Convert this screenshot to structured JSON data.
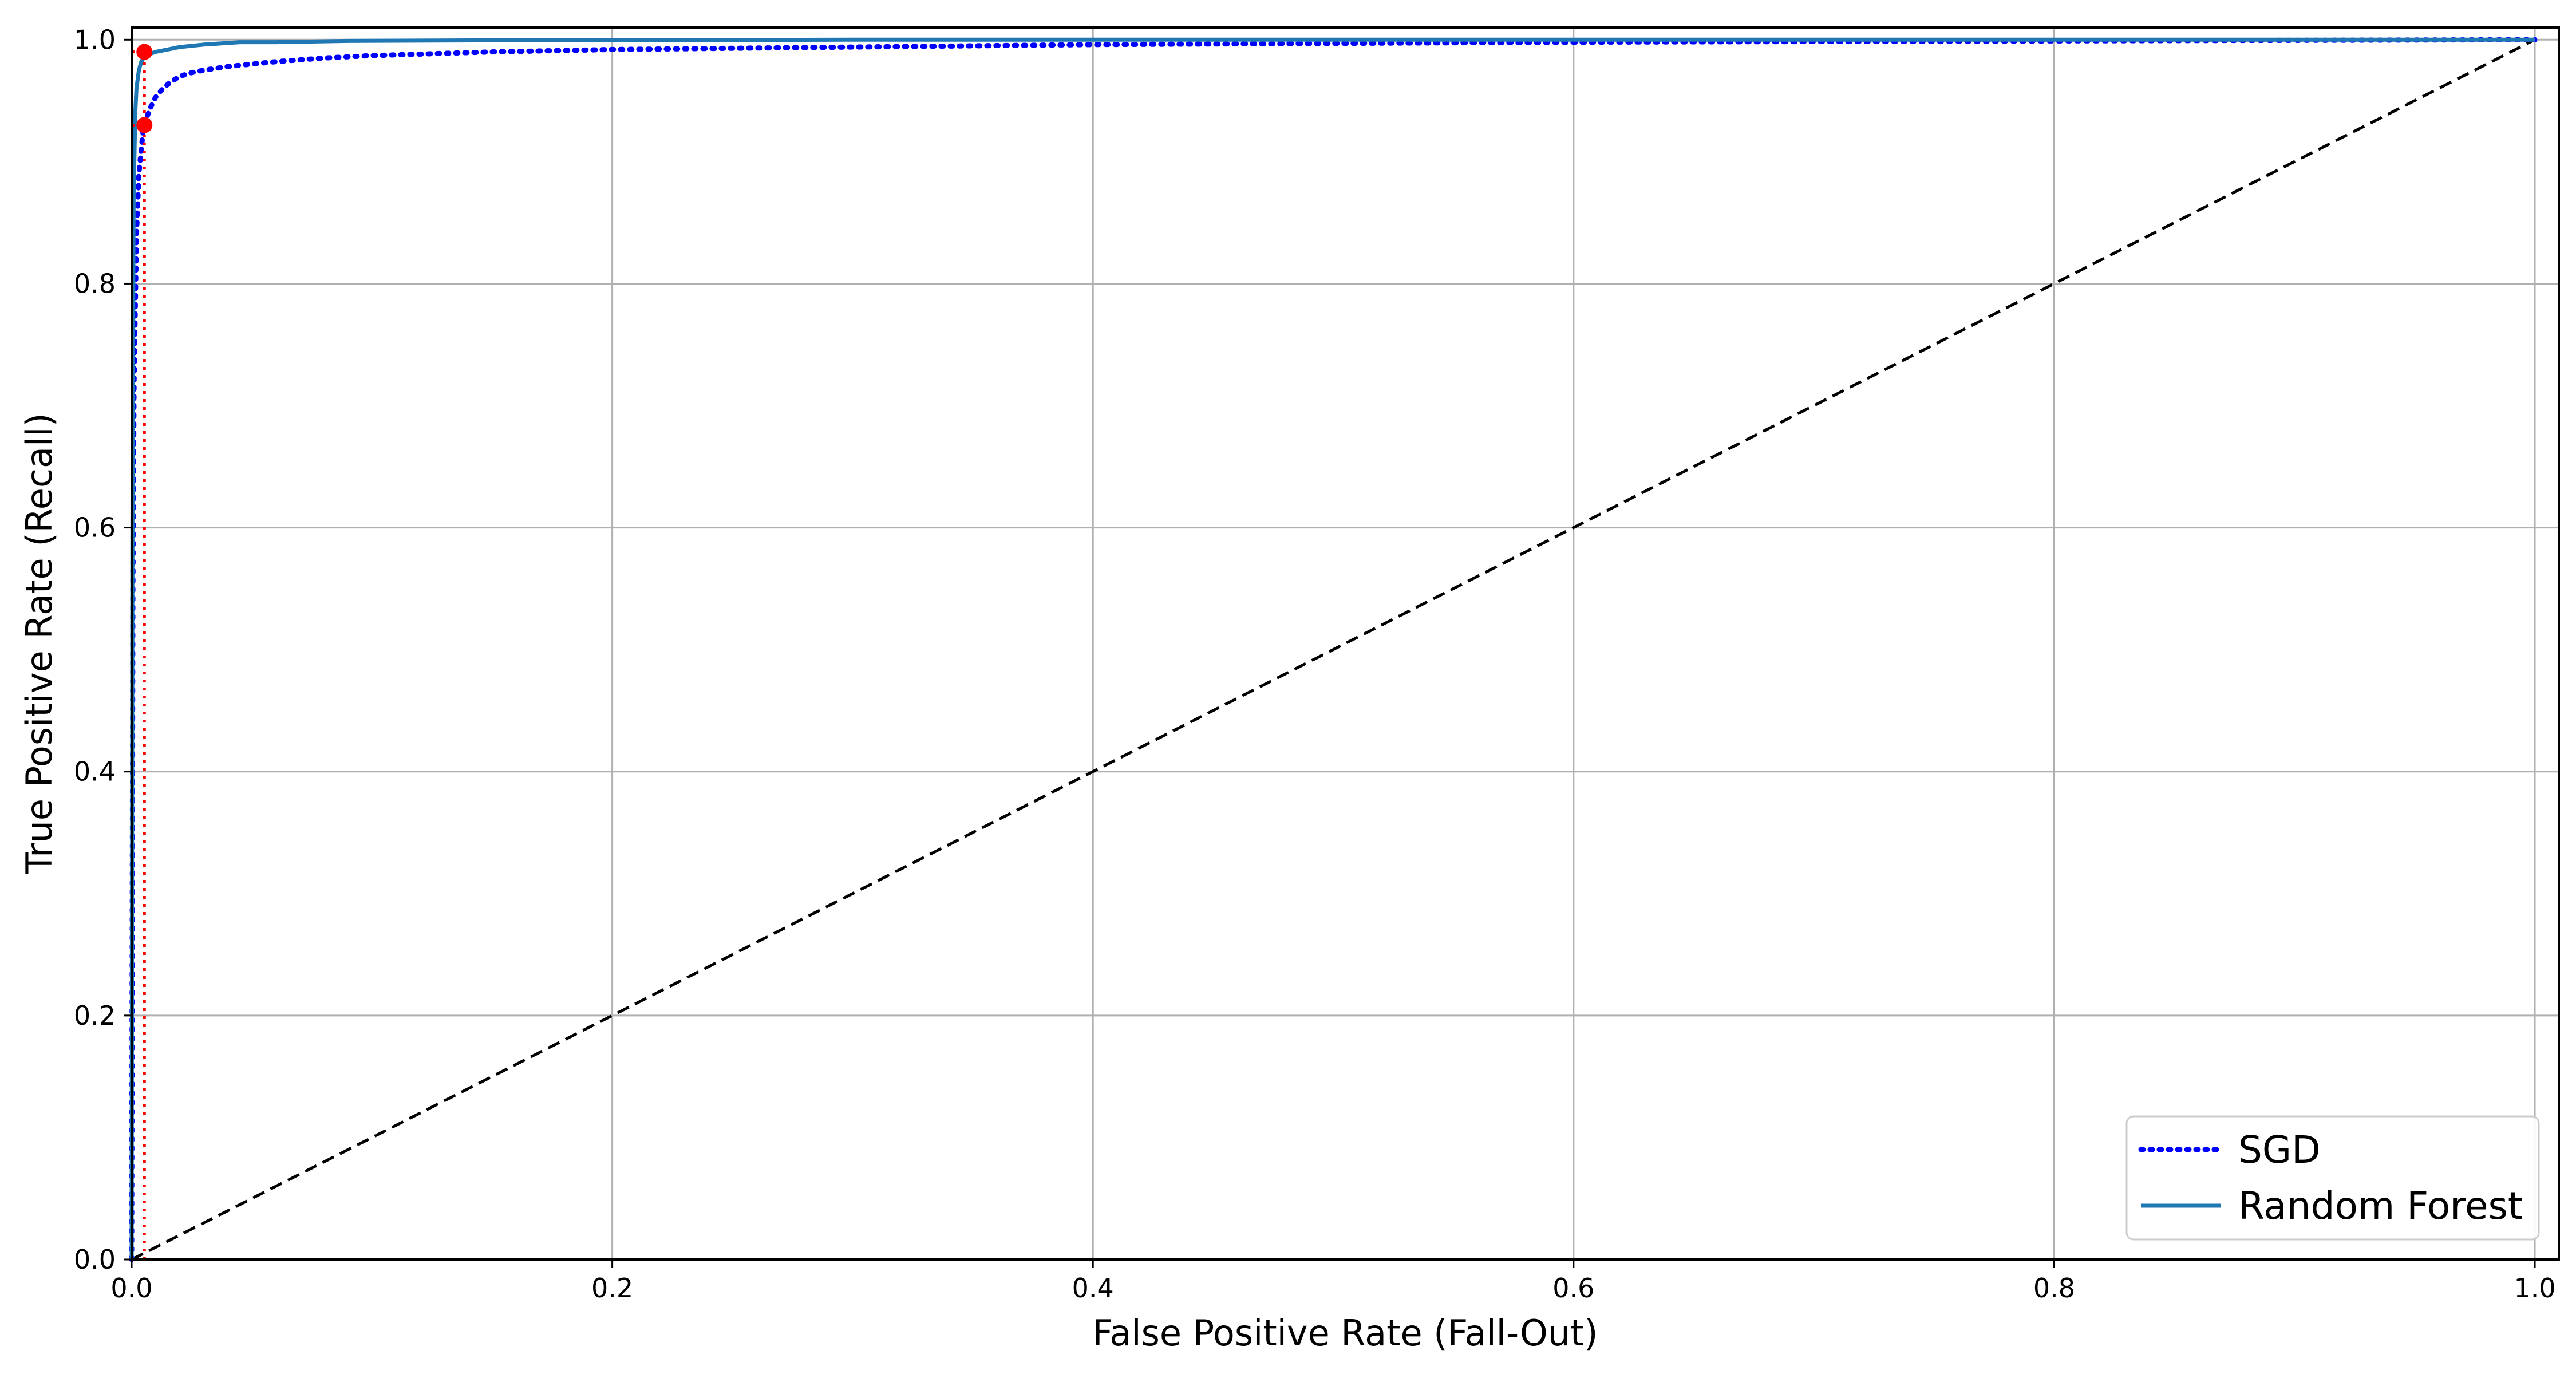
{
  "chart_data": {
    "type": "line",
    "title": "",
    "xlabel": "False Positive Rate (Fall-Out)",
    "ylabel": "True Positive Rate (Recall)",
    "xlim": [
      0,
      1.01
    ],
    "ylim": [
      0,
      1.01
    ],
    "xticks": [
      0.0,
      0.2,
      0.4,
      0.6,
      0.8,
      1.0
    ],
    "yticks": [
      0.0,
      0.2,
      0.4,
      0.6,
      0.8,
      1.0
    ],
    "xtick_labels": [
      "0.0",
      "0.2",
      "0.4",
      "0.6",
      "0.8",
      "1.0"
    ],
    "ytick_labels": [
      "0.0",
      "0.2",
      "0.4",
      "0.6",
      "0.8",
      "1.0"
    ],
    "grid": true,
    "legend_position": "bottom-right",
    "series": [
      {
        "name": "SGD",
        "color": "#0000ff",
        "style": "dotted",
        "x": [
          0,
          0.0005,
          0.001,
          0.002,
          0.003,
          0.004,
          0.005,
          0.006,
          0.008,
          0.01,
          0.013,
          0.016,
          0.02,
          0.025,
          0.03,
          0.04,
          0.05,
          0.06,
          0.08,
          0.1,
          0.15,
          0.2,
          0.3,
          0.4,
          0.6,
          0.8,
          1.0
        ],
        "y": [
          0,
          0.55,
          0.72,
          0.84,
          0.89,
          0.91,
          0.93,
          0.935,
          0.945,
          0.953,
          0.96,
          0.965,
          0.97,
          0.973,
          0.975,
          0.978,
          0.98,
          0.982,
          0.985,
          0.987,
          0.99,
          0.992,
          0.994,
          0.996,
          0.998,
          0.999,
          1.0
        ]
      },
      {
        "name": "Random Forest",
        "color": "#1f77b4",
        "style": "solid",
        "x": [
          0,
          0.0003,
          0.0008,
          0.0015,
          0.002,
          0.003,
          0.004,
          0.005,
          0.007,
          0.01,
          0.015,
          0.02,
          0.03,
          0.045,
          0.06,
          0.09,
          0.15,
          0.3,
          0.6,
          1.0
        ],
        "y": [
          0,
          0.6,
          0.87,
          0.94,
          0.96,
          0.975,
          0.982,
          0.985,
          0.988,
          0.99,
          0.992,
          0.994,
          0.996,
          0.998,
          0.998,
          0.999,
          0.9995,
          1.0,
          1.0,
          1.0
        ]
      },
      {
        "name": "",
        "color": "#000000",
        "style": "dashed",
        "x": [
          0,
          1
        ],
        "y": [
          0,
          1
        ]
      }
    ],
    "markers": [
      {
        "x": 0.0053,
        "y": 0.93,
        "color": "#ff0000"
      },
      {
        "x": 0.0053,
        "y": 0.99,
        "color": "#ff0000"
      }
    ],
    "guide_lines": [
      {
        "from": [
          0.0053,
          0
        ],
        "to": [
          0.0053,
          0.99
        ],
        "color": "#ff0000",
        "style": "dotted"
      },
      {
        "from": [
          0.0,
          0.93
        ],
        "to": [
          0.0053,
          0.93
        ],
        "color": "#ff0000",
        "style": "dotted"
      },
      {
        "from": [
          0.0,
          0.99
        ],
        "to": [
          0.0053,
          0.99
        ],
        "color": "#ff0000",
        "style": "dotted"
      }
    ]
  }
}
